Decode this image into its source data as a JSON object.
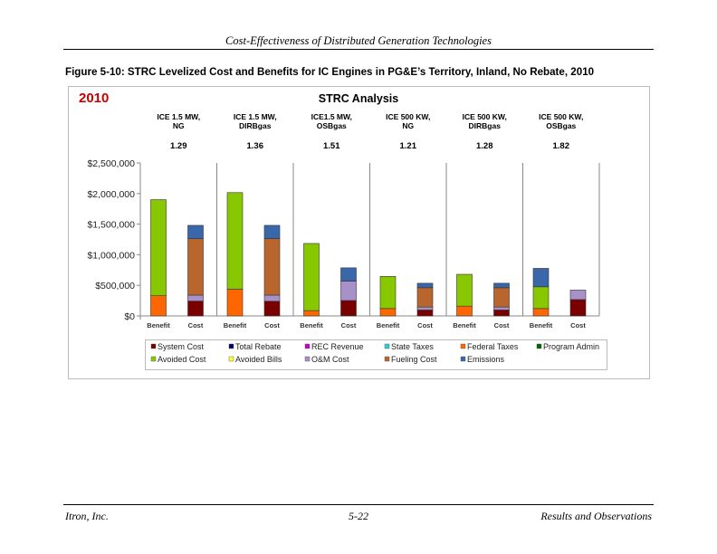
{
  "header": {
    "title": "Cost-Effectiveness of Distributed Generation Technologies"
  },
  "figure": {
    "caption": "Figure 5-10: STRC Levelized Cost and Benefits for IC Engines in PG&E’s Territory, Inland, No Rebate, 2010"
  },
  "footer": {
    "left": "Itron, Inc.",
    "center": "5-22",
    "right": "Results and Observations"
  },
  "chart_data": {
    "type": "bar",
    "stacked": true,
    "title": "STRC Analysis",
    "year_label": "2010",
    "year_color": "#cc0000",
    "groups": [
      {
        "label": "ICE 1.5 MW,\nNG",
        "ratio": "1.29"
      },
      {
        "label": "ICE 1.5 MW,\nDIRBgas",
        "ratio": "1.36"
      },
      {
        "label": "ICE1.5 MW,\nOSBgas",
        "ratio": "1.51"
      },
      {
        "label": "ICE 500 KW,\nNG",
        "ratio": "1.21"
      },
      {
        "label": "ICE 500 KW,\nDIRBgas",
        "ratio": "1.28"
      },
      {
        "label": "ICE 500 KW,\nOSBgas",
        "ratio": "1.82"
      }
    ],
    "categories": [
      "Benefit",
      "Cost",
      "Benefit",
      "Cost",
      "Benefit",
      "Cost",
      "Benefit",
      "Cost",
      "Benefit",
      "Cost",
      "Benefit",
      "Cost"
    ],
    "ylim": [
      0,
      2500000
    ],
    "yticks": [
      "$0",
      "$500,000",
      "$1,000,000",
      "$1,500,000",
      "$2,000,000",
      "$2,500,000"
    ],
    "grid": false,
    "legend_position": "bottom",
    "series": [
      {
        "name": "System Cost",
        "color": "#7a0000",
        "values": [
          0,
          243000,
          0,
          240000,
          0,
          252000,
          0,
          97000,
          0,
          97000,
          0,
          267000
        ]
      },
      {
        "name": "Total Rebate",
        "color": "#000066",
        "values": [
          0,
          0,
          0,
          0,
          0,
          0,
          0,
          0,
          0,
          0,
          0,
          0
        ]
      },
      {
        "name": "REC Revenue",
        "color": "#cc00cc",
        "values": [
          0,
          0,
          0,
          0,
          0,
          0,
          0,
          0,
          0,
          0,
          0,
          0
        ]
      },
      {
        "name": "State Taxes",
        "color": "#33cccc",
        "values": [
          0,
          0,
          0,
          0,
          0,
          0,
          0,
          0,
          0,
          0,
          0,
          0
        ]
      },
      {
        "name": "Federal Taxes",
        "color": "#ff6600",
        "values": [
          330000,
          0,
          437000,
          0,
          87000,
          0,
          121000,
          0,
          160000,
          0,
          121000,
          0
        ]
      },
      {
        "name": "Program Admin",
        "color": "#006600",
        "values": [
          0,
          0,
          0,
          0,
          0,
          0,
          0,
          0,
          0,
          0,
          0,
          0
        ]
      },
      {
        "name": "Avoided Cost",
        "color": "#88c800",
        "values": [
          1570000,
          0,
          1578000,
          0,
          1097000,
          0,
          525000,
          0,
          520000,
          0,
          355000,
          0
        ]
      },
      {
        "name": "Avoided Bills",
        "color": "#ffff33",
        "values": [
          0,
          0,
          0,
          0,
          0,
          0,
          0,
          0,
          0,
          0,
          0,
          0
        ]
      },
      {
        "name": "O&M Cost",
        "color": "#a890c8",
        "values": [
          0,
          97000,
          0,
          100000,
          0,
          316000,
          0,
          49000,
          0,
          49000,
          0,
          155000
        ]
      },
      {
        "name": "Fueling Cost",
        "color": "#b8662e",
        "values": [
          0,
          922000,
          0,
          925000,
          0,
          0,
          0,
          315000,
          0,
          315000,
          0,
          0
        ]
      },
      {
        "name": "Emissions",
        "color": "#3a66aa",
        "values": [
          0,
          218000,
          0,
          215000,
          0,
          218000,
          0,
          73000,
          0,
          73000,
          301000,
          0
        ]
      }
    ]
  }
}
